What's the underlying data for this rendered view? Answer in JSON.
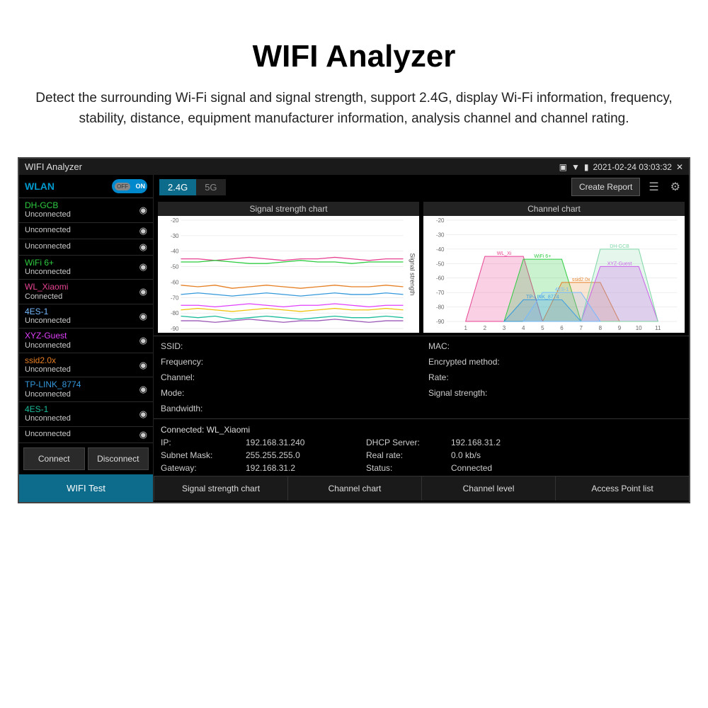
{
  "page": {
    "title": "WIFI Analyzer",
    "description": "Detect the surrounding Wi-Fi signal and signal strength, support 2.4G, display Wi-Fi information, frequency, stability, distance, equipment manufacturer information, analysis channel and channel rating."
  },
  "titlebar": {
    "app_name": "WIFI Analyzer",
    "datetime": "2021-02-24 03:03:32",
    "close": "✕"
  },
  "sidebar": {
    "wlan_label": "WLAN",
    "toggle_on": "ON",
    "toggle_off": "OFF",
    "networks": [
      {
        "name": "DH-GCB",
        "status": "Unconnected",
        "color": "#2ecc40"
      },
      {
        "name": "",
        "status": "Unconnected",
        "color": "#ccc"
      },
      {
        "name": "",
        "status": "Unconnected",
        "color": "#ccc"
      },
      {
        "name": "WiFi 6+",
        "status": "Unconnected",
        "color": "#2ecc40"
      },
      {
        "name": "WL_Xiaomi",
        "status": "Connected",
        "color": "#e84393"
      },
      {
        "name": "4ES-1",
        "status": "Unconnected",
        "color": "#74b9ff"
      },
      {
        "name": "XYZ-Guest",
        "status": "Unconnected",
        "color": "#e040fb"
      },
      {
        "name": "ssid2.0x",
        "status": "Unconnected",
        "color": "#e67e22"
      },
      {
        "name": "TP-LINK_8774",
        "status": "Unconnected",
        "color": "#3498db"
      },
      {
        "name": "4ES-1",
        "status": "Unconnected",
        "color": "#1abc9c"
      },
      {
        "name": "",
        "status": "Unconnected",
        "color": "#ccc"
      }
    ],
    "connect_btn": "Connect",
    "disconnect_btn": "Disconnect",
    "wifi_test": "WIFI Test"
  },
  "toolbar": {
    "band_24": "2.4G",
    "band_5": "5G",
    "create_report": "Create Report"
  },
  "charts": {
    "signal_title": "Signal strength chart",
    "channel_title": "Channel chart",
    "y_ticks": [
      -20,
      -30,
      -40,
      -50,
      -60,
      -70,
      -80,
      -90
    ],
    "signal_y_label": "Signal strength",
    "signal_series": [
      {
        "color": "#e84393",
        "values": [
          -45,
          -45,
          -46,
          -45,
          -44,
          -45,
          -46,
          -45,
          -45,
          -44,
          -45,
          -46,
          -45,
          -45
        ]
      },
      {
        "color": "#2ecc40",
        "values": [
          -47,
          -47,
          -46,
          -47,
          -48,
          -48,
          -47,
          -46,
          -47,
          -47,
          -48,
          -47,
          -47,
          -47
        ]
      },
      {
        "color": "#e67e22",
        "values": [
          -62,
          -63,
          -62,
          -64,
          -63,
          -62,
          -63,
          -64,
          -63,
          -62,
          -63,
          -63,
          -62,
          -63
        ]
      },
      {
        "color": "#3498db",
        "values": [
          -68,
          -67,
          -68,
          -69,
          -68,
          -67,
          -68,
          -69,
          -68,
          -67,
          -68,
          -68,
          -67,
          -68
        ]
      },
      {
        "color": "#e040fb",
        "values": [
          -75,
          -75,
          -76,
          -75,
          -74,
          -75,
          -76,
          -75,
          -75,
          -74,
          -75,
          -76,
          -75,
          -75
        ]
      },
      {
        "color": "#f1c40f",
        "values": [
          -78,
          -77,
          -78,
          -79,
          -78,
          -77,
          -78,
          -79,
          -78,
          -77,
          -78,
          -78,
          -77,
          -78
        ]
      },
      {
        "color": "#1abc9c",
        "values": [
          -82,
          -83,
          -82,
          -84,
          -83,
          -82,
          -83,
          -84,
          -83,
          -82,
          -83,
          -83,
          -82,
          -83
        ]
      },
      {
        "color": "#9b59b6",
        "values": [
          -85,
          -85,
          -86,
          -85,
          -84,
          -85,
          -86,
          -85,
          -85,
          -84,
          -85,
          -86,
          -85,
          -85
        ]
      }
    ],
    "channel_x_ticks": [
      1,
      2,
      3,
      4,
      5,
      6,
      7,
      8,
      9,
      10,
      11
    ],
    "channel_series": [
      {
        "color": "#e84393",
        "label": "WL_Xi",
        "center": 3,
        "peak": -45,
        "fillOpacity": 0.25
      },
      {
        "color": "#2ecc40",
        "label": "WiFi 6+",
        "center": 5,
        "peak": -47,
        "fillOpacity": 0.25
      },
      {
        "color": "#e67e22",
        "label": "ssid2.0x",
        "center": 7,
        "peak": -63,
        "fillOpacity": 0.2
      },
      {
        "color": "#3498db",
        "label": "TP-LINK_8774",
        "center": 5,
        "peak": -75,
        "fillOpacity": 0.2
      },
      {
        "color": "#e040fb",
        "label": "XYZ-Guest",
        "center": 9,
        "peak": -52,
        "fillOpacity": 0.25
      },
      {
        "color": "#7ed6a5",
        "label": "DH-GCB",
        "center": 9,
        "peak": -40,
        "fillOpacity": 0.2
      },
      {
        "color": "#74b9ff",
        "label": "4ES-1",
        "center": 6,
        "peak": -70,
        "fillOpacity": 0.2
      }
    ]
  },
  "details": {
    "rows": [
      {
        "l": "SSID:",
        "r": "MAC:"
      },
      {
        "l": "Frequency:",
        "r": "Encrypted method:"
      },
      {
        "l": "Channel:",
        "r": "Rate:"
      },
      {
        "l": "Mode:",
        "r": "Signal strength:"
      },
      {
        "l": "Bandwidth:",
        "r": ""
      }
    ]
  },
  "connection": {
    "title": "Connected: WL_Xiaomi",
    "rows": [
      {
        "k1": "IP:",
        "v1": "192.168.31.240",
        "k2": "DHCP Server:",
        "v2": "192.168.31.2"
      },
      {
        "k1": "Subnet Mask:",
        "v1": "255.255.255.0",
        "k2": "Real rate:",
        "v2": "0.0 kb/s"
      },
      {
        "k1": "Gateway:",
        "v1": "192.168.31.2",
        "k2": "Status:",
        "v2": "Connected"
      }
    ]
  },
  "bottom_tabs": [
    "Signal strength chart",
    "Channel chart",
    "Channel level",
    "Access Point list"
  ]
}
